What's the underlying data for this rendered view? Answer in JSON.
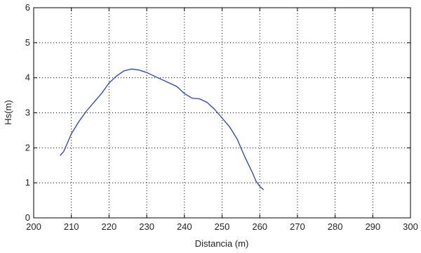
{
  "chart_data": {
    "type": "line",
    "title": "",
    "xlabel": "Distancia (m)",
    "ylabel": "Hs(m)",
    "xlim": [
      200,
      300
    ],
    "ylim": [
      0,
      6
    ],
    "xticks": [
      200,
      210,
      220,
      230,
      240,
      250,
      260,
      270,
      280,
      290,
      300
    ],
    "yticks": [
      0,
      1,
      2,
      3,
      4,
      5,
      6
    ],
    "grid": true,
    "grid_style": "dotted",
    "series": [
      {
        "color": "#2b3fbf",
        "x": [
          207,
          208,
          209,
          210,
          212,
          214,
          216,
          218,
          220,
          222,
          224,
          226,
          228,
          230,
          232,
          234,
          236,
          238,
          240,
          242,
          244,
          246,
          248,
          250,
          252,
          254,
          256,
          258,
          259,
          260,
          261
        ],
        "y": [
          1.78,
          1.9,
          2.15,
          2.4,
          2.75,
          3.05,
          3.3,
          3.55,
          3.85,
          4.05,
          4.2,
          4.25,
          4.22,
          4.15,
          4.05,
          3.95,
          3.85,
          3.75,
          3.55,
          3.42,
          3.4,
          3.3,
          3.1,
          2.85,
          2.6,
          2.25,
          1.75,
          1.3,
          1.05,
          0.9,
          0.8
        ]
      }
    ]
  }
}
